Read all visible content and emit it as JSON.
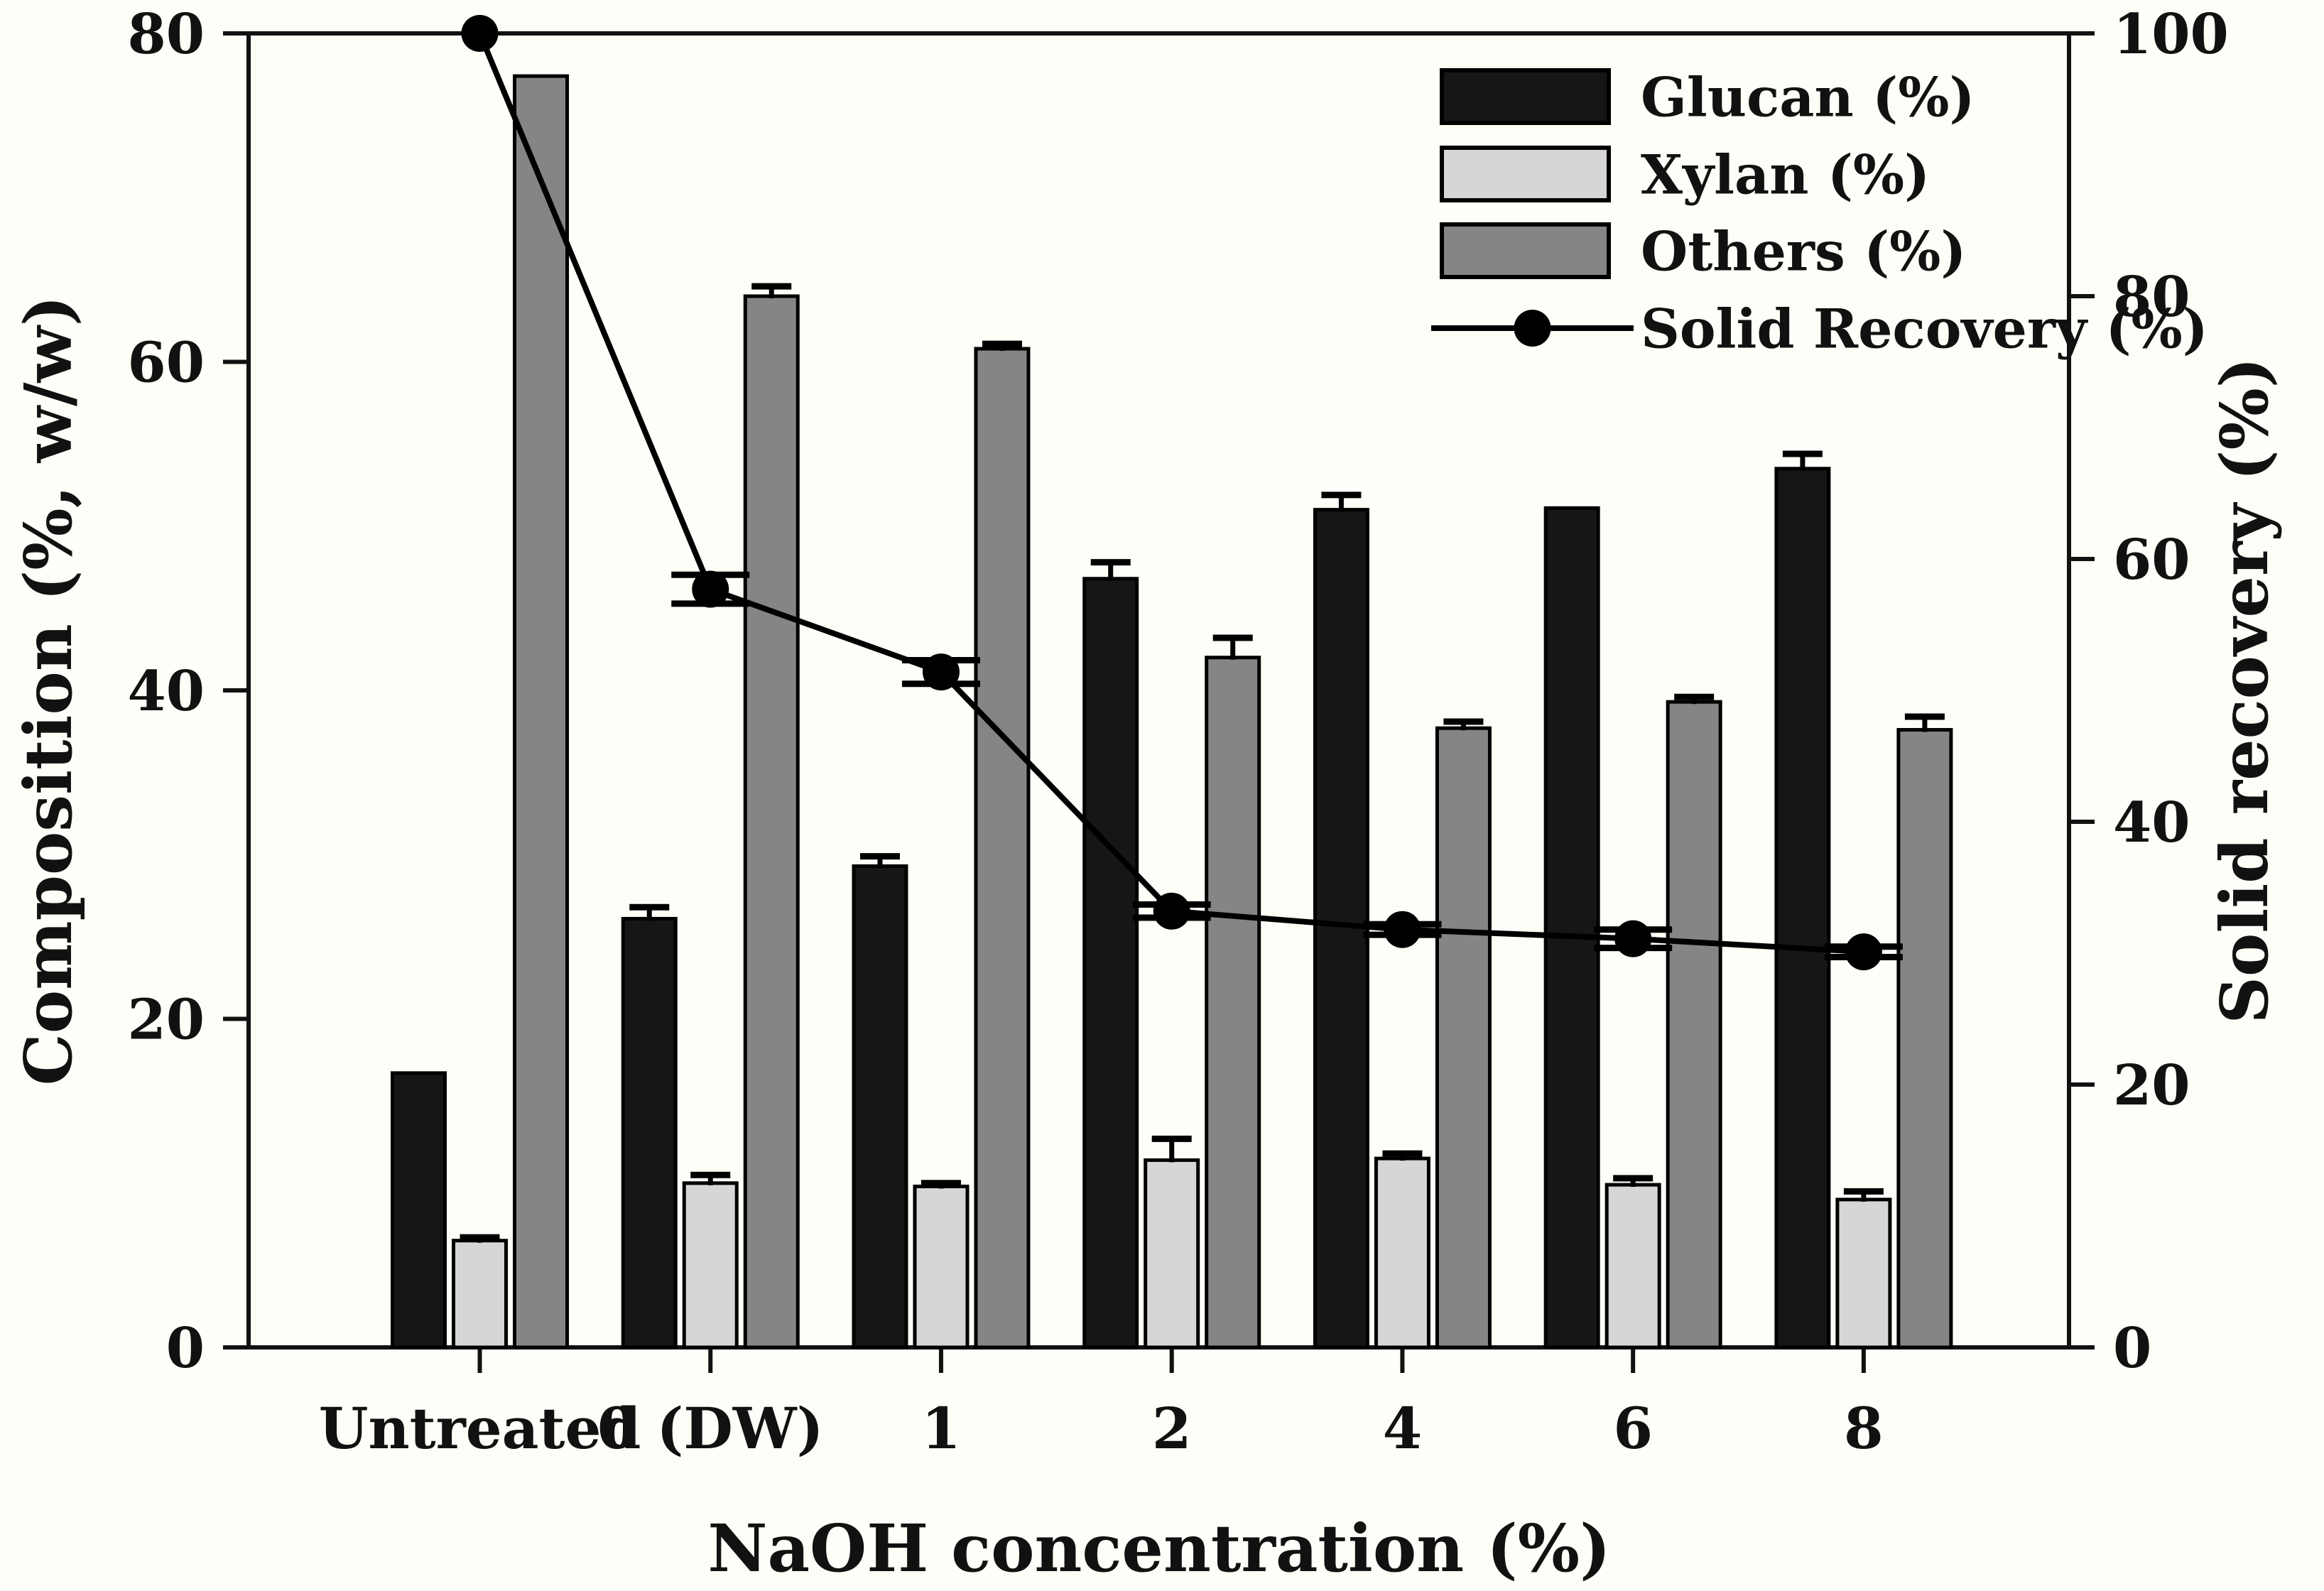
{
  "figure": {
    "background": "#fffdf7",
    "frame_color": "#111111",
    "x_axis": {
      "title": "NaOH concentration (%)",
      "tick_labels": [
        "Untreated",
        "0 (DW)",
        "1",
        "2",
        "4",
        "6",
        "8"
      ]
    },
    "left_axis": {
      "title": "Composition (%, w/w)",
      "min": 0,
      "max": 80,
      "ticks": [
        0,
        20,
        40,
        60,
        80
      ]
    },
    "right_axis": {
      "title": "Solid recovery (%)",
      "min": 0,
      "max": 100,
      "ticks": [
        0,
        20,
        40,
        60,
        80,
        100
      ]
    },
    "legend": {
      "marker_icon": "filled-circle",
      "position": "upper-right-inside"
    }
  },
  "chart_data": {
    "type": "bar",
    "subtype": "grouped-bars-with-line-overlay",
    "title": "",
    "xlabel": "NaOH concentration (%)",
    "ylabel_left": "Composition (%, w/w)",
    "ylabel_right": "Solid recovery (%)",
    "ylim_left": [
      0,
      80
    ],
    "ylim_right": [
      0,
      100
    ],
    "grid": false,
    "legend_position": "upper right inside plot",
    "categories": [
      "Untreated",
      "0 (DW)",
      "1",
      "2",
      "4",
      "6",
      "8"
    ],
    "series": [
      {
        "name": "Glucan (%)",
        "slug": "glucan",
        "kind": "bar",
        "axis": "left",
        "fill": "#161616",
        "stroke": "#000000",
        "values": [
          16.7,
          26.1,
          29.3,
          46.8,
          51.0,
          51.1,
          53.5
        ],
        "errors": [
          0,
          0.7,
          0.6,
          1.0,
          0.9,
          0,
          0.9
        ]
      },
      {
        "name": "Xylan (%)",
        "slug": "xylan",
        "kind": "bar",
        "axis": "left",
        "fill": "#d6d6d6",
        "stroke": "#000000",
        "values": [
          6.5,
          10.0,
          9.8,
          11.4,
          11.5,
          9.9,
          9.0
        ],
        "errors": [
          0.2,
          0.5,
          0.2,
          1.3,
          0.3,
          0.4,
          0.5
        ]
      },
      {
        "name": "Others (%)",
        "slug": "others",
        "kind": "bar",
        "axis": "left",
        "fill": "#858585",
        "stroke": "#000000",
        "values": [
          77.4,
          64.0,
          60.8,
          42.0,
          37.7,
          39.3,
          37.6
        ],
        "errors": [
          0,
          0.6,
          0.3,
          1.2,
          0.4,
          0.3,
          0.8
        ]
      },
      {
        "name": "Solid Recovery (%)",
        "slug": "solid-recovery",
        "kind": "line",
        "axis": "right",
        "color": "#000000",
        "marker": "filled-circle",
        "values": [
          100,
          57.7,
          51.4,
          33.2,
          31.8,
          31.1,
          30.1
        ],
        "errors": [
          0,
          1.1,
          0.9,
          0.5,
          0.4,
          0.7,
          0.4
        ]
      }
    ]
  }
}
